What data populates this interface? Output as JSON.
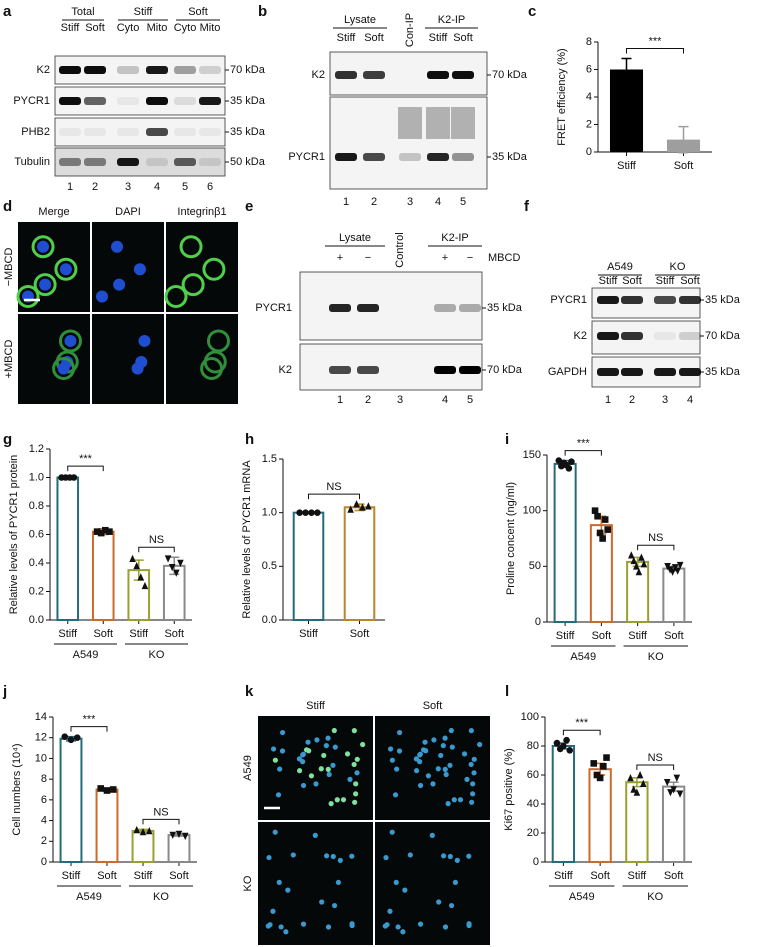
{
  "panel_labels": [
    "a",
    "b",
    "c",
    "d",
    "e",
    "f",
    "g",
    "h",
    "i",
    "j",
    "k",
    "l"
  ],
  "blots": {
    "a": {
      "headers": [
        "Total",
        "Stiff",
        "Soft"
      ],
      "lanes": [
        "Stiff",
        "Soft",
        "Cyto",
        "Mito",
        "Cyto",
        "Mito"
      ],
      "rows": [
        "K2",
        "PYCR1",
        "PHB2",
        "Tubulin"
      ],
      "markers": [
        "70 kDa",
        "35 kDa",
        "35 kDa",
        "50 kDa"
      ],
      "lane_numbers": [
        "1",
        "2",
        "3",
        "4",
        "5",
        "6"
      ]
    },
    "b": {
      "headers": [
        "Lysate",
        "Con-IP",
        "K2-IP"
      ],
      "lanes": [
        "Stiff",
        "Soft",
        "Stiff",
        "Soft"
      ],
      "rows": [
        "K2",
        "PYCR1"
      ],
      "markers": [
        "70 kDa",
        "35 kDa"
      ],
      "lane_numbers": [
        "1",
        "2",
        "3",
        "4",
        "5"
      ]
    },
    "e": {
      "headers": [
        "Lysate",
        "Control",
        "K2-IP"
      ],
      "lanes": [
        "+",
        "−",
        "+",
        "−"
      ],
      "side_label": "MBCD",
      "rows": [
        "PYCR1",
        "K2"
      ],
      "markers": [
        "35 kDa",
        "70 kDa"
      ],
      "lane_numbers": [
        "1",
        "2",
        "3",
        "4",
        "5"
      ]
    },
    "f": {
      "headers": [
        "A549",
        "KO"
      ],
      "lanes": [
        "Stiff",
        "Soft",
        "Stiff",
        "Soft"
      ],
      "rows": [
        "PYCR1",
        "K2",
        "GAPDH"
      ],
      "markers": [
        "35 kDa",
        "70 kDa",
        "35 kDa"
      ],
      "lane_numbers": [
        "1",
        "2",
        "3",
        "4"
      ]
    }
  },
  "images": {
    "d": {
      "columns": [
        "Merge",
        "DAPI",
        "Integrinβ1"
      ],
      "rows": [
        "−MBCD",
        "+MBCD"
      ]
    },
    "k": {
      "columns": [
        "Stiff",
        "Soft"
      ],
      "rows": [
        "A549",
        "KO"
      ]
    }
  },
  "chart_data": [
    {
      "type": "bar",
      "ylabel": "FRET efficiency (%)",
      "categories": [
        "Stiff",
        "Soft"
      ],
      "values": [
        6.0,
        0.9
      ],
      "errors": [
        0.8,
        0.95
      ],
      "colors": [
        "#000000",
        "#9e9e9e"
      ],
      "fill": "solid",
      "ylim": [
        0,
        8
      ],
      "yticks": [
        0,
        2,
        4,
        6,
        8
      ],
      "brackets": [
        "***"
      ]
    },
    {
      "type": "bar",
      "ylabel": "Relative levels of PYCR1 protein",
      "categories": [
        "Stiff",
        "Soft",
        "Stiff",
        "Soft"
      ],
      "groups": [
        "A549",
        "KO"
      ],
      "values": [
        1.0,
        0.62,
        0.35,
        0.38
      ],
      "errors": [
        0.01,
        0.02,
        0.07,
        0.06
      ],
      "points": [
        [
          1.0,
          1.0,
          1.0,
          1.0
        ],
        [
          0.62,
          0.61,
          0.63,
          0.62
        ],
        [
          0.43,
          0.38,
          0.3,
          0.24
        ],
        [
          0.43,
          0.37,
          0.33,
          0.4
        ]
      ],
      "markers": [
        "circle",
        "square",
        "triangle",
        "triangle-down"
      ],
      "colors": [
        "#236c7c",
        "#cc6a2a",
        "#99a030",
        "#8a8a8a"
      ],
      "fill": "outline",
      "ylim": [
        0,
        1.2
      ],
      "yticks": [
        {
          "value": 0,
          "label": "0.0"
        },
        0.2,
        0.4,
        0.6,
        0.8,
        {
          "value": 1,
          "label": "1.0"
        },
        1.2
      ],
      "brackets": [
        "***",
        "NS"
      ]
    },
    {
      "type": "bar",
      "ylabel": "Relative levels of PYCR1 mRNA",
      "categories": [
        "Stiff",
        "Soft"
      ],
      "values": [
        1.0,
        1.05
      ],
      "errors": [
        0.005,
        0.03
      ],
      "points": [
        [
          1.0,
          1.0,
          1.0,
          1.0
        ],
        [
          1.03,
          1.08,
          1.05,
          1.06
        ]
      ],
      "markers": [
        "circle",
        "triangle"
      ],
      "colors": [
        "#236c7c",
        "#b8862b"
      ],
      "fill": "outline",
      "ylim": [
        0,
        1.5
      ],
      "yticks": [
        {
          "value": 0,
          "label": "0.0"
        },
        0.5,
        {
          "value": 1,
          "label": "1.0"
        },
        1.5
      ],
      "brackets": [
        "NS"
      ]
    },
    {
      "type": "bar",
      "ylabel": "Proline concent (ng/ml)",
      "categories": [
        "Stiff",
        "Soft",
        "Stiff",
        "Soft"
      ],
      "groups": [
        "A549",
        "KO"
      ],
      "values": [
        142,
        87,
        54,
        48
      ],
      "errors": [
        3,
        8,
        4,
        2
      ],
      "points": [
        [
          145,
          140,
          143,
          141,
          138,
          144
        ],
        [
          100,
          95,
          80,
          75,
          92,
          83
        ],
        [
          60,
          55,
          50,
          45,
          58,
          52
        ],
        [
          50,
          47,
          45,
          49,
          46,
          51
        ]
      ],
      "markers": [
        "circle",
        "square",
        "triangle",
        "triangle-down"
      ],
      "colors": [
        "#236c7c",
        "#cc6a2a",
        "#99a030",
        "#8a8a8a"
      ],
      "fill": "outline",
      "ylim": [
        0,
        150
      ],
      "yticks": [
        0,
        50,
        100,
        150
      ],
      "brackets": [
        "***",
        "NS"
      ]
    },
    {
      "type": "bar",
      "ylabel": "Cell numbers (10⁴)",
      "categories": [
        "Stiff",
        "Soft",
        "Stiff",
        "Soft"
      ],
      "groups": [
        "A549",
        "KO"
      ],
      "values": [
        11.9,
        7.0,
        3.0,
        2.6
      ],
      "errors": [
        0.2,
        0.15,
        0.15,
        0.1
      ],
      "points": [
        [
          12.1,
          11.8,
          12.0
        ],
        [
          7.1,
          6.9,
          7.0
        ],
        [
          3.1,
          2.9,
          3.0
        ],
        [
          2.6,
          2.7,
          2.5
        ]
      ],
      "markers": [
        "circle",
        "square",
        "triangle",
        "triangle-down"
      ],
      "colors": [
        "#236c7c",
        "#cc6a2a",
        "#99a030",
        "#8a8a8a"
      ],
      "fill": "outline",
      "ylim": [
        0,
        14
      ],
      "yticks": [
        0,
        2,
        4,
        6,
        8,
        10,
        12,
        14
      ],
      "brackets": [
        "***",
        "NS"
      ]
    },
    {
      "type": "bar",
      "ylabel": "Ki67 positive (%)",
      "categories": [
        "Stiff",
        "Soft",
        "Stiff",
        "Soft"
      ],
      "groups": [
        "A549",
        "KO"
      ],
      "values": [
        80,
        64,
        55,
        52
      ],
      "errors": [
        2,
        4,
        3,
        3
      ],
      "points": [
        [
          82,
          78,
          80,
          84,
          77
        ],
        [
          68,
          60,
          58,
          66,
          72
        ],
        [
          58,
          50,
          48,
          60,
          54
        ],
        [
          55,
          48,
          50,
          58,
          47
        ]
      ],
      "markers": [
        "circle",
        "square",
        "triangle",
        "triangle-down"
      ],
      "colors": [
        "#236c7c",
        "#cc6a2a",
        "#99a030",
        "#8a8a8a"
      ],
      "fill": "outline",
      "ylim": [
        0,
        100
      ],
      "yticks": [
        0,
        20,
        40,
        60,
        80,
        100
      ],
      "brackets": [
        "***",
        "NS"
      ]
    }
  ]
}
